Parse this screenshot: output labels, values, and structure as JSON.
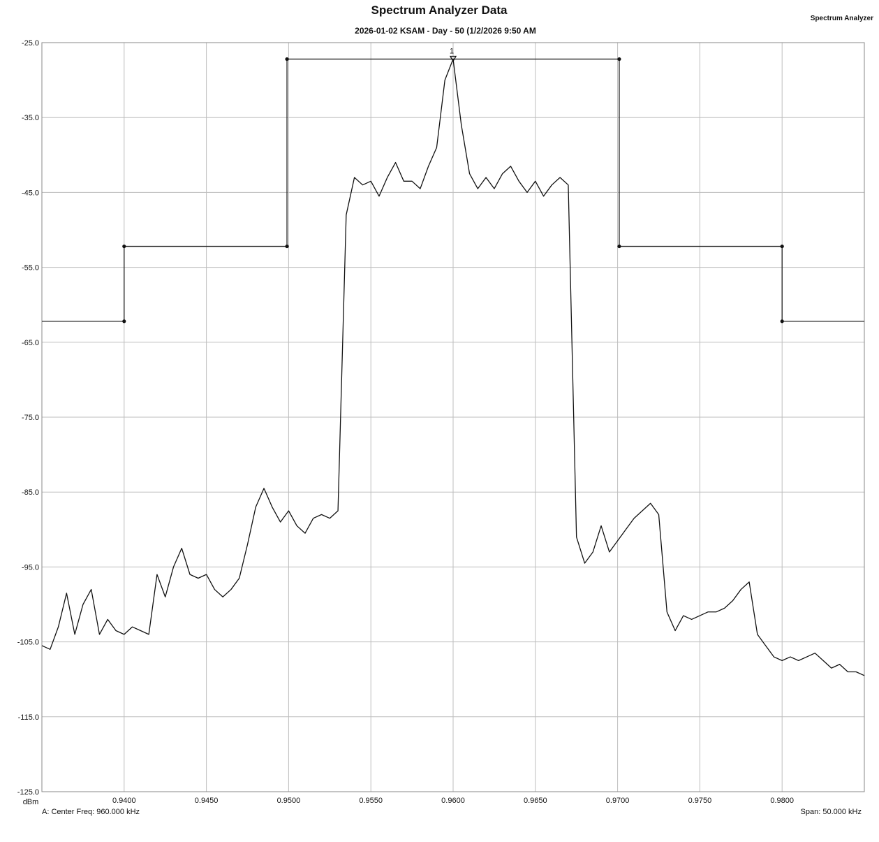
{
  "chart_data": {
    "type": "line",
    "title": "Spectrum Analyzer Data",
    "subtitle": "2026-01-02 KSAM - Day - 50 (1/2/2026 9:50 AM",
    "corner_label": "Spectrum Analyzer",
    "ylabel": "dBm",
    "xlim": [
      0.935,
      0.985
    ],
    "ylim": [
      -125,
      -25
    ],
    "x_ticks": [
      0.94,
      0.945,
      0.95,
      0.955,
      0.96,
      0.965,
      0.97,
      0.975,
      0.98
    ],
    "x_tick_labels": [
      "0.9400",
      "0.9450",
      "0.9500",
      "0.9550",
      "0.9600",
      "0.9650",
      "0.9700",
      "0.9750",
      "0.9800"
    ],
    "y_ticks": [
      -25,
      -35,
      -45,
      -55,
      -65,
      -75,
      -85,
      -95,
      -105,
      -115,
      -125
    ],
    "y_tick_labels": [
      "-25.0",
      "-35.0",
      "-45.0",
      "-55.0",
      "-65.0",
      "-75.0",
      "-85.0",
      "-95.0",
      "-105.0",
      "-115.0",
      "-125.0"
    ],
    "grid": true,
    "footer_left": "A: Center Freq: 960.000 kHz",
    "footer_right": "Span: 50.000 kHz",
    "marker": {
      "label": "1",
      "x": 0.96,
      "y": -27.2
    },
    "mask": {
      "x": [
        0.935,
        0.94,
        0.94,
        0.9499,
        0.9499,
        0.9701,
        0.9701,
        0.98,
        0.98,
        0.985
      ],
      "y": [
        -62.2,
        -62.2,
        -52.2,
        -52.2,
        -27.2,
        -27.2,
        -52.2,
        -52.2,
        -62.2,
        -62.2
      ],
      "points": [
        [
          0.94,
          -62.2
        ],
        [
          0.94,
          -52.2
        ],
        [
          0.9499,
          -52.2
        ],
        [
          0.9499,
          -27.2
        ],
        [
          0.9701,
          -27.2
        ],
        [
          0.9701,
          -52.2
        ],
        [
          0.98,
          -52.2
        ],
        [
          0.98,
          -62.2
        ]
      ]
    },
    "series": [
      {
        "x": [
          0.935,
          0.9355,
          0.936,
          0.9365,
          0.937,
          0.9375,
          0.938,
          0.9385,
          0.939,
          0.9395,
          0.94,
          0.9405,
          0.941,
          0.9415,
          0.942,
          0.9425,
          0.943,
          0.9435,
          0.944,
          0.9445,
          0.945,
          0.9455,
          0.946,
          0.9465,
          0.947,
          0.9475,
          0.948,
          0.9485,
          0.949,
          0.9495,
          0.95,
          0.9505,
          0.951,
          0.9515,
          0.952,
          0.9525,
          0.953,
          0.9535,
          0.954,
          0.9545,
          0.955,
          0.9555,
          0.956,
          0.9565,
          0.957,
          0.9575,
          0.958,
          0.9585,
          0.959,
          0.9595,
          0.96,
          0.9605,
          0.961,
          0.9615,
          0.962,
          0.9625,
          0.963,
          0.9635,
          0.964,
          0.9645,
          0.965,
          0.9655,
          0.966,
          0.9665,
          0.967,
          0.9675,
          0.968,
          0.9685,
          0.969,
          0.9695,
          0.97,
          0.9705,
          0.971,
          0.9715,
          0.972,
          0.9725,
          0.973,
          0.9735,
          0.974,
          0.9745,
          0.975,
          0.9755,
          0.976,
          0.9765,
          0.977,
          0.9775,
          0.978,
          0.9785,
          0.979,
          0.9795,
          0.98,
          0.9805,
          0.981,
          0.9815,
          0.982,
          0.9825,
          0.983,
          0.9835,
          0.984,
          0.9845,
          0.985
        ],
        "y": [
          -105.5,
          -106.0,
          -103.0,
          -98.5,
          -104.0,
          -100.0,
          -98.0,
          -104.0,
          -102.0,
          -103.5,
          -104.0,
          -103.0,
          -103.5,
          -104.0,
          -96.0,
          -99.0,
          -95.0,
          -92.5,
          -96.0,
          -96.5,
          -96.0,
          -98.0,
          -99.0,
          -98.0,
          -96.5,
          -92.0,
          -87.0,
          -84.5,
          -87.0,
          -89.0,
          -87.5,
          -89.5,
          -90.5,
          -88.5,
          -88.0,
          -88.5,
          -87.5,
          -48.0,
          -43.0,
          -44.0,
          -43.5,
          -45.5,
          -43.0,
          -41.0,
          -43.5,
          -43.5,
          -44.5,
          -41.5,
          -39.0,
          -30.0,
          -27.2,
          -36.0,
          -42.5,
          -44.5,
          -43.0,
          -44.5,
          -42.5,
          -41.5,
          -43.5,
          -45.0,
          -43.5,
          -45.5,
          -44.0,
          -43.0,
          -44.0,
          -91.0,
          -94.5,
          -93.0,
          -89.5,
          -93.0,
          -91.5,
          -90.0,
          -88.5,
          -87.5,
          -86.5,
          -88.0,
          -101.0,
          -103.5,
          -101.5,
          -102.0,
          -101.5,
          -101.0,
          -101.0,
          -100.5,
          -99.5,
          -98.0,
          -97.0,
          -104.0,
          -105.5,
          -107.0,
          -107.5,
          -107.0,
          -107.5,
          -107.0,
          -106.5,
          -107.5,
          -108.5,
          -108.0,
          -109.0,
          -109.0,
          -109.5
        ]
      }
    ]
  }
}
